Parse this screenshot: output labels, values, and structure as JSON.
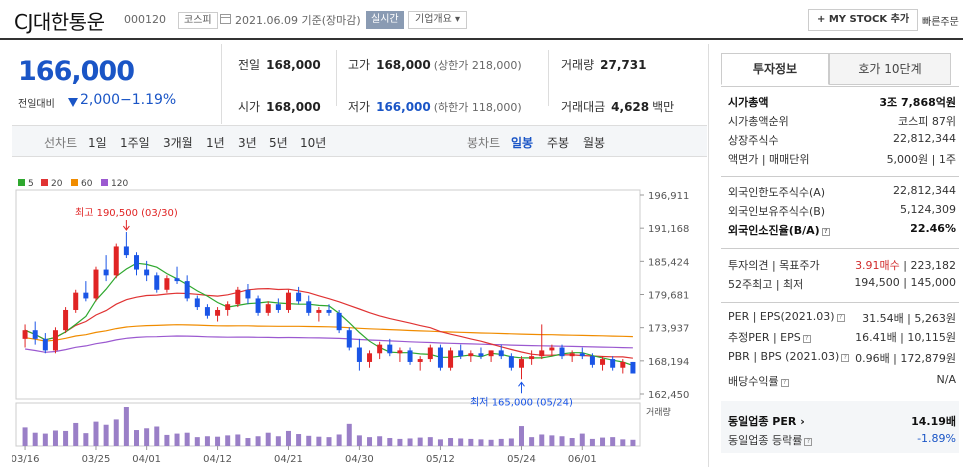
{
  "header": {
    "name": "CJ대한통운",
    "code": "000120",
    "market": "코스피",
    "date": "2021.06.09 기준(장마감)",
    "realtime": "실시간",
    "company": "기업개요 ▾",
    "mystock": "+ MY STOCK 추가",
    "quick_order": "빠른주문"
  },
  "price": {
    "current": "166,000",
    "prev_label": "전일대비",
    "change": "2,000",
    "change_pct": "−1.19%"
  },
  "stats": {
    "prev_close_label": "전일",
    "prev_close": "168,000",
    "high_label": "고가",
    "high": "168,000",
    "upper_limit": "(상한가 218,000)",
    "volume_label": "거래량",
    "volume": "27,731",
    "open_label": "시가",
    "open": "168,000",
    "low_label": "저가",
    "low": "166,000",
    "lower_limit": "(하한가 118,000)",
    "amount_label": "거래대금",
    "amount": "4,628",
    "amount_unit": "백만"
  },
  "periods": {
    "line_label": "선차트",
    "items": [
      "1일",
      "1주일",
      "3개월",
      "1년",
      "3년",
      "5년",
      "10년"
    ],
    "candle_label": "봉차트",
    "candle_items": [
      "일봉",
      "주봉",
      "월봉"
    ]
  },
  "chart_data": {
    "type": "candlestick",
    "legend": [
      {
        "name": "5",
        "color": "#2fa82f"
      },
      {
        "name": "20",
        "color": "#e03333"
      },
      {
        "name": "60",
        "color": "#f08c00"
      },
      {
        "name": "120",
        "color": "#9b59d0"
      }
    ],
    "y_ticks": [
      "196,911",
      "191,168",
      "185,424",
      "179,681",
      "173,937",
      "168,194",
      "162,450"
    ],
    "ylim": [
      162450,
      196911
    ],
    "x_ticks": [
      "03/16",
      "03/25",
      "04/01",
      "04/12",
      "04/21",
      "04/30",
      "05/12",
      "05/24",
      "06/01"
    ],
    "x_tick_index": [
      0,
      7,
      12,
      19,
      26,
      33,
      41,
      49,
      55
    ],
    "high_annotation": "최고 190,500 (03/30)",
    "high_index": 10,
    "high_value": 190500,
    "low_annotation": "최저 165,000 (05/24)",
    "low_index": 49,
    "low_value": 165000,
    "volume_label": "거래량",
    "candles": [
      [
        172000,
        174500,
        170500,
        173500
      ],
      [
        173500,
        175000,
        171000,
        172000
      ],
      [
        172000,
        173000,
        169500,
        170000
      ],
      [
        170000,
        174000,
        169500,
        173500
      ],
      [
        173500,
        177500,
        173000,
        177000
      ],
      [
        177000,
        180500,
        176500,
        180000
      ],
      [
        180000,
        182000,
        178500,
        179000
      ],
      [
        179000,
        184500,
        178500,
        184000
      ],
      [
        184000,
        186500,
        182000,
        183000
      ],
      [
        183000,
        188500,
        182500,
        188000
      ],
      [
        188000,
        190500,
        186000,
        186500
      ],
      [
        186500,
        187000,
        183000,
        184000
      ],
      [
        184000,
        185500,
        182000,
        183000
      ],
      [
        183000,
        183500,
        180000,
        180500
      ],
      [
        180500,
        183000,
        180000,
        182500
      ],
      [
        182500,
        184500,
        181500,
        182000
      ],
      [
        182000,
        183000,
        178500,
        179000
      ],
      [
        179000,
        179500,
        177000,
        177500
      ],
      [
        177500,
        178000,
        175500,
        176000
      ],
      [
        176000,
        177500,
        175000,
        177000
      ],
      [
        177000,
        178500,
        176000,
        178000
      ],
      [
        178000,
        181000,
        177500,
        180500
      ],
      [
        180500,
        181500,
        178000,
        179000
      ],
      [
        179000,
        179500,
        176000,
        176500
      ],
      [
        176500,
        178500,
        176000,
        178000
      ],
      [
        178000,
        179000,
        176500,
        177000
      ],
      [
        177000,
        180500,
        176500,
        180000
      ],
      [
        180000,
        181000,
        178000,
        178500
      ],
      [
        178500,
        179500,
        176000,
        176500
      ],
      [
        176500,
        177500,
        175000,
        177000
      ],
      [
        177000,
        178000,
        176000,
        176500
      ],
      [
        176500,
        177000,
        173000,
        173500
      ],
      [
        173500,
        174000,
        170000,
        170500
      ],
      [
        170500,
        172000,
        166500,
        168000
      ],
      [
        168000,
        170000,
        167000,
        169500
      ],
      [
        169500,
        171500,
        168500,
        171000
      ],
      [
        171000,
        172000,
        169000,
        169500
      ],
      [
        169500,
        170500,
        168000,
        170000
      ],
      [
        170000,
        170500,
        167500,
        168000
      ],
      [
        168000,
        169000,
        166500,
        168500
      ],
      [
        168500,
        171000,
        168000,
        170500
      ],
      [
        170500,
        171000,
        166500,
        167000
      ],
      [
        167000,
        170500,
        166500,
        170000
      ],
      [
        170000,
        171000,
        168500,
        169000
      ],
      [
        169000,
        170000,
        168000,
        169500
      ],
      [
        169500,
        170500,
        168500,
        169000
      ],
      [
        169000,
        170000,
        168000,
        170000
      ],
      [
        170000,
        171000,
        168500,
        169000
      ],
      [
        169000,
        169500,
        166500,
        167000
      ],
      [
        167000,
        169000,
        165000,
        168500
      ],
      [
        168500,
        170000,
        167500,
        169000
      ],
      [
        169000,
        174500,
        168500,
        170000
      ],
      [
        170000,
        171000,
        169000,
        170500
      ],
      [
        170500,
        171000,
        168500,
        169000
      ],
      [
        169000,
        170000,
        168000,
        169500
      ],
      [
        169500,
        170500,
        168500,
        169000
      ],
      [
        169000,
        169500,
        167000,
        167500
      ],
      [
        167500,
        169000,
        166500,
        168500
      ],
      [
        168500,
        169000,
        166500,
        167000
      ],
      [
        167000,
        168500,
        166000,
        168000
      ],
      [
        168000,
        168000,
        166000,
        166000
      ]
    ],
    "volumes": [
      42,
      30,
      28,
      35,
      34,
      52,
      29,
      55,
      48,
      60,
      88,
      36,
      40,
      44,
      25,
      28,
      30,
      20,
      22,
      21,
      24,
      26,
      18,
      22,
      30,
      22,
      34,
      27,
      23,
      21,
      20,
      26,
      50,
      24,
      20,
      22,
      18,
      16,
      17,
      19,
      20,
      15,
      18,
      17,
      16,
      15,
      14,
      16,
      17,
      45,
      20,
      26,
      24,
      22,
      18,
      28,
      16,
      19,
      20,
      15,
      14
    ]
  },
  "panel": {
    "tab_info": "투자정보",
    "tab_order": "호가 10단계",
    "rows1": [
      {
        "l": "시가총액",
        "r": "3조 7,868억원",
        "bold": true
      },
      {
        "l": "시가총액순위",
        "r": "코스피 87위"
      },
      {
        "l": "상장주식수",
        "r": "22,812,344"
      },
      {
        "l": "액면가 | 매매단위",
        "r": "5,000원 | 1주"
      }
    ],
    "rows2": [
      {
        "l": "외국인한도주식수(A)",
        "r": "22,812,344"
      },
      {
        "l": "외국인보유주식수(B)",
        "r": "5,124,309"
      },
      {
        "l": "외국인소진율(B/A)",
        "r": "22.46%",
        "bold": true
      }
    ],
    "opinion_label": "투자의견 | 목표주가",
    "opinion": "3.91매수",
    "target": "223,182",
    "week52_label": "52주최고 | 최저",
    "week52": "194,500 | 145,000",
    "per_label": "PER | EPS(2021.03)",
    "per": "31.54배 | 5,263원",
    "eper_label": "추정PER | EPS",
    "eper": "16.41배 | 10,115원",
    "pbr_label": "PBR | BPS (2021.03)",
    "pbr": "0.96배 | 172,879원",
    "div_label": "배당수익률",
    "div": "N/A",
    "sector_per_label": "동일업종 PER",
    "sector_per": "14.19배",
    "sector_chg_label": "동일업종 등락률",
    "sector_chg": "-1.89%"
  }
}
